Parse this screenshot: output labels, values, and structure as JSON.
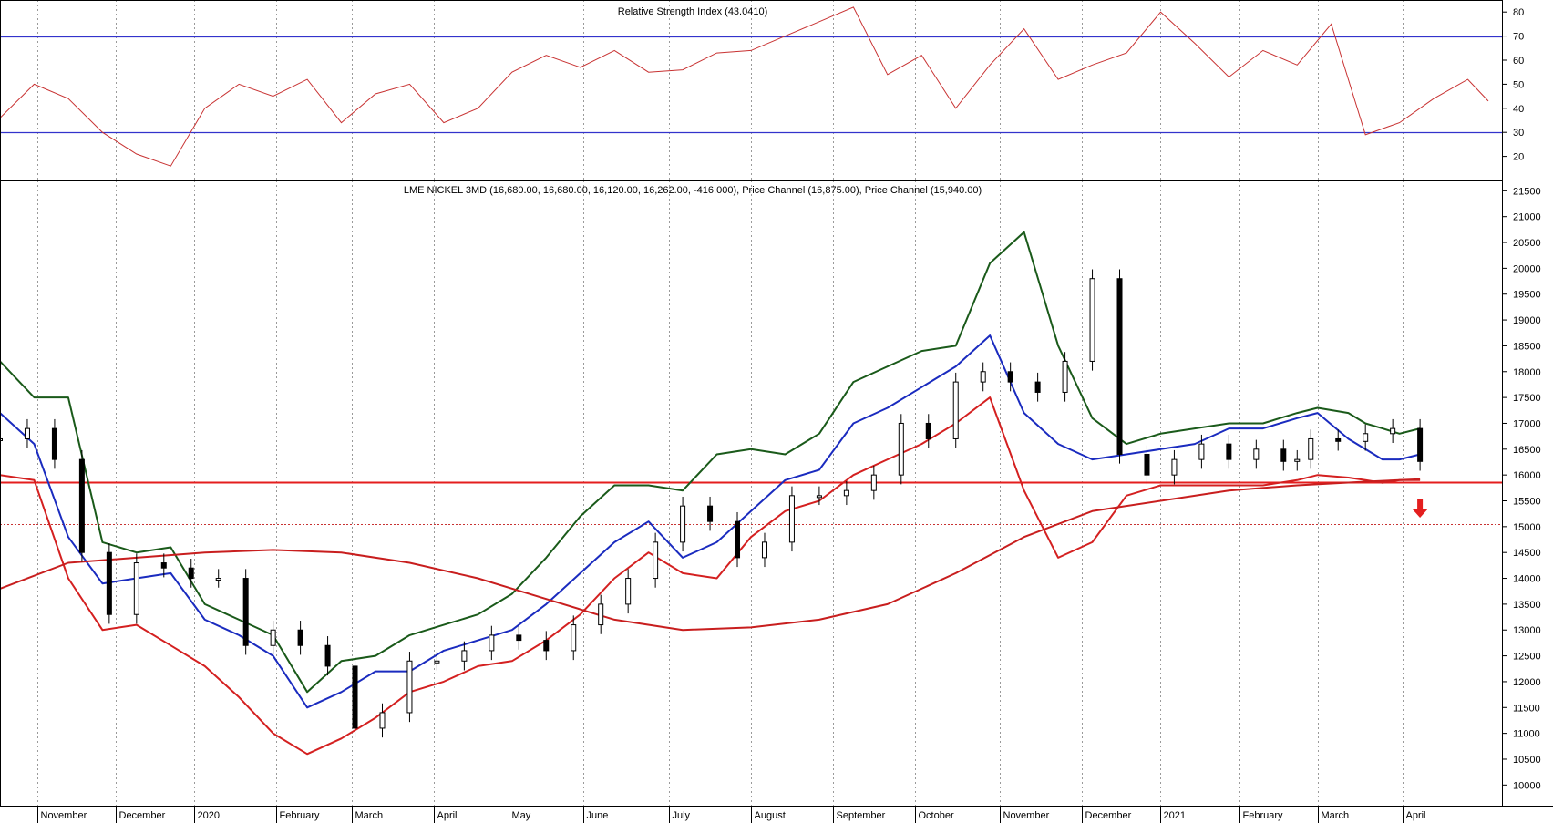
{
  "chart_data": [
    {
      "type": "line",
      "title": "Relative Strength Index (43.0410)",
      "ylim": [
        10,
        85
      ],
      "y_ticks": [
        20,
        30,
        40,
        50,
        60,
        70,
        80
      ],
      "reference_lines": [
        30,
        70
      ],
      "colors": {
        "rsi": "#c83232",
        "reference": "#3333cc"
      },
      "x_range": [
        0,
        440
      ],
      "series": [
        {
          "x": [
            0,
            10,
            20,
            30,
            40,
            50,
            60,
            70,
            80,
            90,
            100,
            110,
            120,
            130,
            140,
            150,
            160,
            170,
            180,
            190,
            200,
            210,
            220,
            230,
            240,
            250,
            260,
            270,
            280,
            290,
            300,
            310,
            320,
            330,
            340,
            350,
            360,
            370,
            380,
            390,
            400,
            410,
            420,
            430,
            436
          ],
          "values": [
            36,
            50,
            44,
            30,
            21,
            16,
            40,
            50,
            45,
            52,
            34,
            46,
            50,
            34,
            40,
            55,
            62,
            57,
            64,
            55,
            56,
            63,
            64,
            70,
            76,
            82,
            54,
            62,
            40,
            58,
            73,
            52,
            58,
            63,
            80,
            67,
            53,
            64,
            58,
            75,
            29,
            34,
            44,
            52,
            43
          ]
        }
      ]
    },
    {
      "type": "line",
      "title": "LME NICKEL 3MD (16,680.00, 16,680.00, 16,120.00, 16,262.00, -416.000), Price Channel (16,875.00), Price Channel (15,940.00)",
      "ylim": [
        9600,
        21700
      ],
      "y_ticks": [
        10000,
        10500,
        11000,
        11500,
        12000,
        12500,
        13000,
        13500,
        14000,
        14500,
        15000,
        15500,
        16000,
        16500,
        17000,
        17500,
        18000,
        18500,
        19000,
        19500,
        20000,
        20500,
        21000,
        21500
      ],
      "x_range": [
        0,
        440
      ],
      "x_tick_labels": [
        "November",
        "December",
        "2020",
        "February",
        "March",
        "April",
        "May",
        "June",
        "July",
        "August",
        "September",
        "October",
        "November",
        "December",
        "2021",
        "February",
        "March",
        "April"
      ],
      "x_tick_positions": [
        11,
        34,
        57,
        81,
        103,
        127,
        149,
        171,
        196,
        220,
        244,
        268,
        293,
        317,
        340,
        363,
        386,
        411
      ],
      "horizontal_levels": [
        {
          "value": 15870,
          "style": "solid",
          "color": "#e41e1e"
        },
        {
          "value": 15050,
          "style": "dotted",
          "color": "#c83232"
        }
      ],
      "signal": {
        "direction": "down",
        "color": "#e41e1e",
        "x": 416,
        "y": 15350
      },
      "series": [
        {
          "name": "",
          "style": "candles",
          "x": [
            0,
            8,
            16,
            24,
            32,
            40,
            48,
            56,
            64,
            72,
            80,
            88,
            96,
            104,
            112,
            120,
            128,
            136,
            144,
            152,
            160,
            168,
            176,
            184,
            192,
            200,
            208,
            216,
            224,
            232,
            240,
            248,
            256,
            264,
            272,
            280,
            288,
            296,
            304,
            312,
            320,
            328,
            336,
            344,
            352,
            360,
            368,
            376,
            380,
            384,
            392,
            400,
            408,
            416
          ],
          "values": [
            16700,
            16900,
            16300,
            14500,
            13300,
            14300,
            14200,
            14000,
            14000,
            12700,
            13000,
            12700,
            12300,
            11100,
            11400,
            12400,
            12400,
            12600,
            12900,
            12800,
            12600,
            13100,
            13500,
            14000,
            14700,
            15400,
            15100,
            14400,
            14700,
            15600,
            15600,
            15700,
            16000,
            17000,
            16700,
            17800,
            18000,
            17800,
            17600,
            18200,
            19800,
            16400,
            16000,
            16300,
            16600,
            16300,
            16500,
            16262,
            16300,
            16700,
            16650,
            16800,
            16900,
            16262
          ]
        },
        {
          "name": "",
          "color": "#1a2bbf",
          "x": [
            0,
            10,
            20,
            30,
            40,
            50,
            60,
            70,
            80,
            90,
            100,
            110,
            120,
            130,
            140,
            150,
            160,
            170,
            180,
            190,
            200,
            210,
            220,
            230,
            240,
            250,
            260,
            270,
            280,
            290,
            300,
            310,
            320,
            330,
            340,
            350,
            360,
            370,
            380,
            386,
            395,
            405,
            410,
            416
          ],
          "values": [
            17200,
            16600,
            14800,
            13900,
            14000,
            14100,
            13200,
            12900,
            12500,
            11500,
            11800,
            12200,
            12200,
            12600,
            12800,
            13000,
            13500,
            14100,
            14700,
            15100,
            14400,
            14700,
            15300,
            15900,
            16100,
            17000,
            17300,
            17700,
            18100,
            18700,
            17200,
            16600,
            16300,
            16400,
            16500,
            16600,
            16900,
            16900,
            17100,
            17200,
            16700,
            16300,
            16300,
            16400
          ]
        },
        {
          "name": "",
          "color": "#1a5a1a",
          "x": [
            0,
            10,
            20,
            30,
            40,
            50,
            60,
            70,
            80,
            90,
            100,
            110,
            120,
            130,
            140,
            150,
            160,
            170,
            180,
            190,
            200,
            210,
            220,
            230,
            240,
            250,
            260,
            270,
            280,
            290,
            300,
            310,
            320,
            330,
            340,
            350,
            360,
            370,
            380,
            386,
            395,
            400,
            405,
            410,
            416
          ],
          "values": [
            18200,
            17500,
            17500,
            14700,
            14500,
            14600,
            13500,
            13200,
            12900,
            11800,
            12400,
            12500,
            12900,
            13100,
            13300,
            13700,
            14400,
            15200,
            15800,
            15800,
            15700,
            16400,
            16500,
            16400,
            16800,
            17800,
            18100,
            18400,
            18500,
            20100,
            20700,
            18500,
            17100,
            16600,
            16800,
            16900,
            17000,
            17000,
            17200,
            17300,
            17200,
            17000,
            16900,
            16800,
            16900
          ]
        },
        {
          "name": "",
          "color": "#d42020",
          "x": [
            0,
            10,
            20,
            30,
            40,
            50,
            60,
            70,
            80,
            90,
            100,
            110,
            120,
            130,
            140,
            150,
            160,
            170,
            180,
            190,
            200,
            210,
            220,
            230,
            240,
            250,
            260,
            270,
            280,
            290,
            300,
            310,
            320,
            330,
            340,
            350,
            360,
            370,
            380,
            386,
            395,
            400,
            405,
            410,
            416
          ],
          "values": [
            16000,
            15900,
            14000,
            13000,
            13100,
            12700,
            12300,
            11700,
            11000,
            10600,
            10900,
            11300,
            11800,
            12000,
            12300,
            12400,
            12800,
            13300,
            14000,
            14500,
            14100,
            14000,
            14800,
            15300,
            15500,
            16000,
            16300,
            16600,
            17000,
            17500,
            15700,
            14400,
            14700,
            15600,
            15800,
            15800,
            15800,
            15800,
            15900,
            16000,
            15950,
            15900,
            15850,
            15900,
            15900
          ]
        },
        {
          "name": "",
          "color": "#c81e1e",
          "x": [
            0,
            20,
            40,
            60,
            80,
            100,
            120,
            140,
            160,
            180,
            200,
            220,
            240,
            260,
            280,
            300,
            320,
            340,
            360,
            380,
            400,
            416
          ],
          "values": [
            13800,
            14300,
            14400,
            14500,
            14550,
            14500,
            14300,
            14000,
            13600,
            13200,
            13000,
            13050,
            13200,
            13500,
            14100,
            14800,
            15300,
            15500,
            15700,
            15800,
            15870,
            15920
          ]
        }
      ]
    }
  ]
}
